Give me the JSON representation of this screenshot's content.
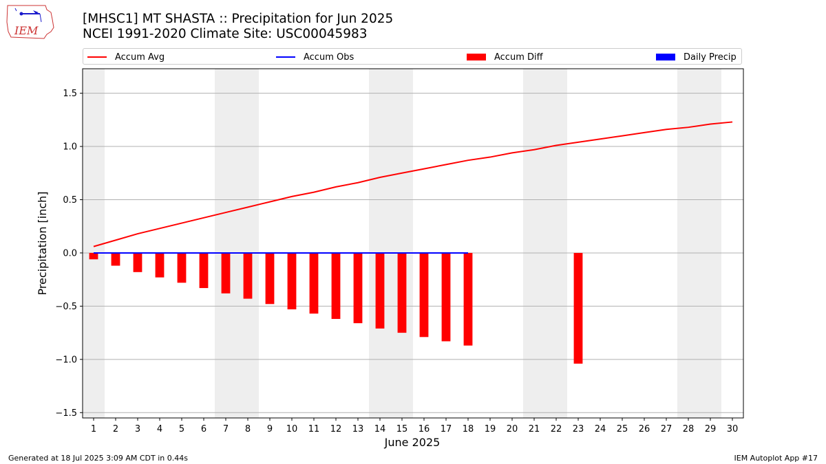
{
  "header": {
    "title_line1": "[MHSC1] MT SHASTA :: Precipitation for Jun 2025",
    "title_line2": "NCEI 1991-2020 Climate Site: USC00045983",
    "logo_text": "IEM"
  },
  "footer": {
    "generated": "Generated at 18 Jul 2025 3:09 AM CDT in 0.44s",
    "app": "IEM Autoplot App #17"
  },
  "colors": {
    "accum_avg": "#ff0000",
    "accum_obs": "#0000ff",
    "accum_diff": "#ff0000",
    "daily_precip": "#0000ff",
    "weekend_shade": "#eeeeee",
    "grid": "#b0b0b0"
  },
  "chart_data": {
    "type": "bar",
    "title": "[MHSC1] MT SHASTA :: Precipitation for Jun 2025",
    "subtitle": "NCEI 1991-2020 Climate Site: USC00045983",
    "xlabel": "June 2025",
    "ylabel": "Precipitation [inch]",
    "x": [
      1,
      2,
      3,
      4,
      5,
      6,
      7,
      8,
      9,
      10,
      11,
      12,
      13,
      14,
      15,
      16,
      17,
      18,
      19,
      20,
      21,
      22,
      23,
      24,
      25,
      26,
      27,
      28,
      29,
      30
    ],
    "xlim": [
      0.5,
      30.5
    ],
    "ylim": [
      -1.55,
      1.73
    ],
    "yticks": [
      -1.5,
      -1.0,
      -0.5,
      0.0,
      0.5,
      1.0,
      1.5
    ],
    "ytick_labels": [
      "−1.5",
      "−1.0",
      "−0.5",
      "0.0",
      "0.5",
      "1.0",
      "1.5"
    ],
    "grid": "horizontal",
    "legend_position": "top",
    "weekend_days": [
      [
        1,
        1
      ],
      [
        7,
        8
      ],
      [
        14,
        15
      ],
      [
        21,
        22
      ],
      [
        28,
        29
      ]
    ],
    "series": [
      {
        "name": "Accum Avg",
        "kind": "line",
        "x": [
          1,
          2,
          3,
          4,
          5,
          6,
          7,
          8,
          9,
          10,
          11,
          12,
          13,
          14,
          15,
          16,
          17,
          18,
          19,
          20,
          21,
          22,
          23,
          24,
          25,
          26,
          27,
          28,
          29,
          30
        ],
        "values": [
          0.06,
          0.12,
          0.18,
          0.23,
          0.28,
          0.33,
          0.38,
          0.43,
          0.48,
          0.53,
          0.57,
          0.62,
          0.66,
          0.71,
          0.75,
          0.79,
          0.83,
          0.87,
          0.9,
          0.94,
          0.97,
          1.01,
          1.04,
          1.07,
          1.1,
          1.13,
          1.16,
          1.18,
          1.21,
          1.23
        ]
      },
      {
        "name": "Accum Obs",
        "kind": "line",
        "x": [
          1,
          2,
          3,
          4,
          5,
          6,
          7,
          8,
          9,
          10,
          11,
          12,
          13,
          14,
          15,
          16,
          17,
          18
        ],
        "values": [
          0,
          0,
          0,
          0,
          0,
          0,
          0,
          0,
          0,
          0,
          0,
          0,
          0,
          0,
          0,
          0,
          0,
          0
        ]
      },
      {
        "name": "Accum Diff",
        "kind": "bar",
        "x": [
          1,
          2,
          3,
          4,
          5,
          6,
          7,
          8,
          9,
          10,
          11,
          12,
          13,
          14,
          15,
          16,
          17,
          18,
          23
        ],
        "values": [
          -0.06,
          -0.12,
          -0.18,
          -0.23,
          -0.28,
          -0.33,
          -0.38,
          -0.43,
          -0.48,
          -0.53,
          -0.57,
          -0.62,
          -0.66,
          -0.71,
          -0.75,
          -0.79,
          -0.83,
          -0.87,
          -1.04
        ]
      },
      {
        "name": "Daily Precip",
        "kind": "bar",
        "x": [],
        "values": []
      }
    ]
  }
}
